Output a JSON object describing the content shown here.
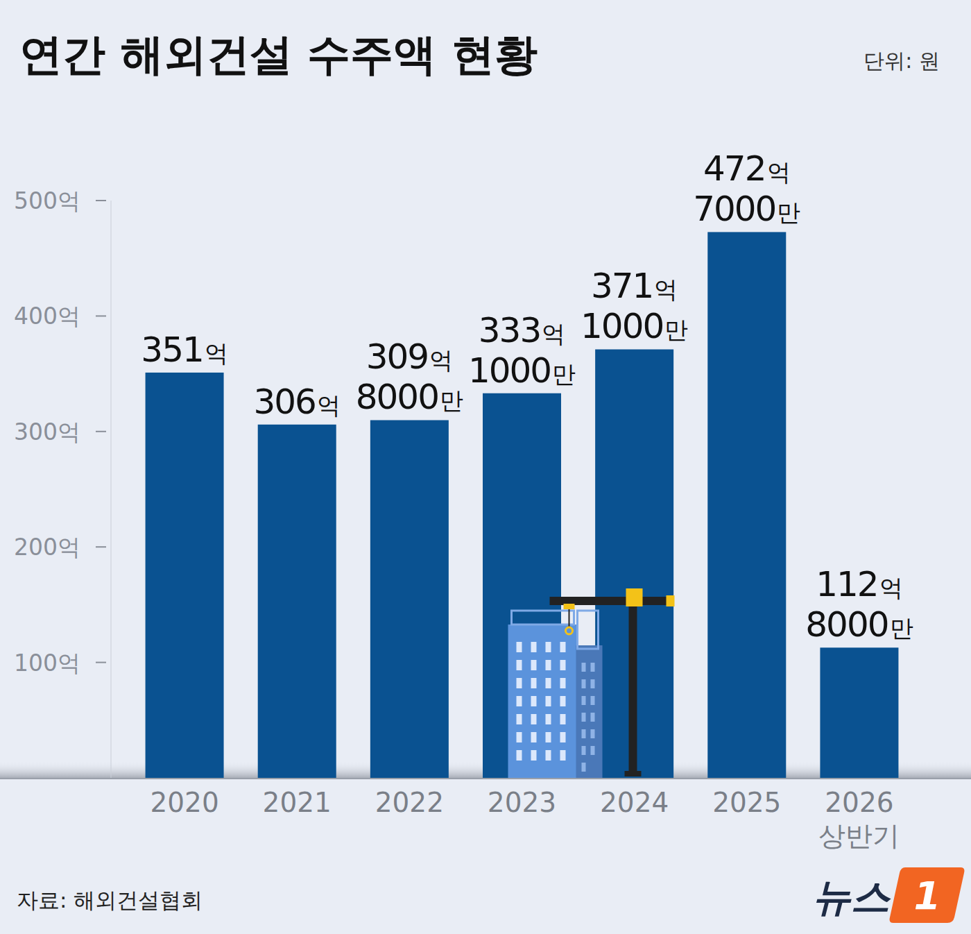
{
  "chart_data": {
    "type": "bar",
    "title": "연간 해외건설 수주액 현황",
    "unit_label": "단위: 원",
    "source": "자료: 해외건설협회",
    "logo": [
      "뉴스",
      "1"
    ],
    "categories": [
      "2020",
      "2021",
      "2022",
      "2023",
      "2024",
      "2025",
      "2026 상반기"
    ],
    "values": [
      351,
      306,
      309.8,
      333.1,
      371.1,
      472.7,
      112.8
    ],
    "value_labels": [
      "351억",
      "306억",
      "309억 8000만",
      "333억 1000만",
      "371억 1000만",
      "472억 7000만",
      "112억 8000만"
    ],
    "color": "#0a5291",
    "ylim": [
      0,
      500
    ],
    "yticks": [
      {
        "value": 100,
        "label": "100억"
      },
      {
        "value": 200,
        "label": "200억"
      },
      {
        "value": 300,
        "label": "300억"
      },
      {
        "value": 400,
        "label": "400억"
      },
      {
        "value": 500,
        "label": "500억"
      }
    ],
    "grid": false,
    "data_labels": true
  }
}
